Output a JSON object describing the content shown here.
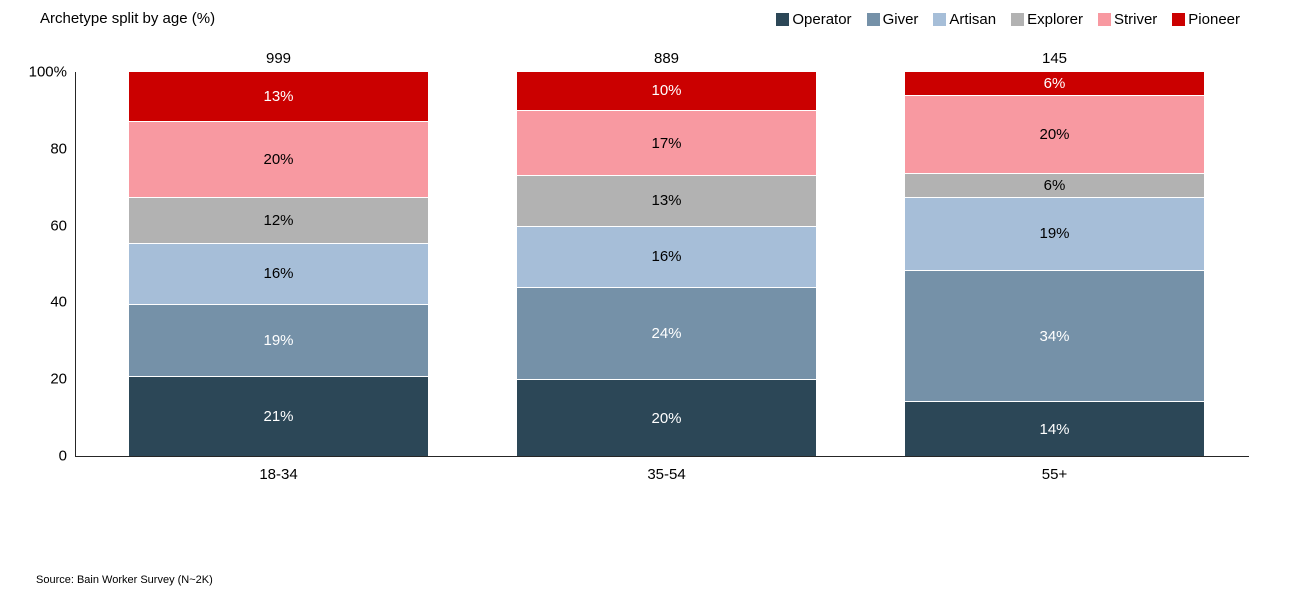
{
  "title": "Archetype split by age (%)",
  "source": "Source: Bain Worker Survey (N~2K)",
  "chart_data": {
    "type": "bar",
    "stacked": true,
    "title": "Archetype split by age (%)",
    "categories": [
      "18-34",
      "35-54",
      "55+"
    ],
    "totals": [
      "999",
      "889",
      "145"
    ],
    "series": [
      {
        "name": "Operator",
        "color": "#2c4757",
        "label_color": "#ffffff",
        "values": [
          21,
          20,
          14
        ]
      },
      {
        "name": "Giver",
        "color": "#7591a8",
        "label_color": "#ffffff",
        "values": [
          19,
          24,
          34
        ]
      },
      {
        "name": "Artisan",
        "color": "#a6bed8",
        "label_color": "#000000",
        "values": [
          16,
          16,
          19
        ]
      },
      {
        "name": "Explorer",
        "color": "#b2b2b2",
        "label_color": "#000000",
        "values": [
          12,
          13,
          6
        ]
      },
      {
        "name": "Striver",
        "color": "#f899a1",
        "label_color": "#000000",
        "values": [
          20,
          17,
          20
        ]
      },
      {
        "name": "Pioneer",
        "color": "#cb0000",
        "label_color": "#ffffff",
        "values": [
          13,
          10,
          6
        ]
      }
    ],
    "value_suffix": "%",
    "y_ticks": [
      {
        "label": "100%",
        "value": 100
      },
      {
        "label": "80",
        "value": 80
      },
      {
        "label": "60",
        "value": 60
      },
      {
        "label": "40",
        "value": 40
      },
      {
        "label": "20",
        "value": 20
      },
      {
        "label": "0",
        "value": 0
      }
    ],
    "ylim": [
      0,
      100
    ],
    "grid": false,
    "legend_position": "top-right",
    "xlabel": "",
    "ylabel": ""
  }
}
